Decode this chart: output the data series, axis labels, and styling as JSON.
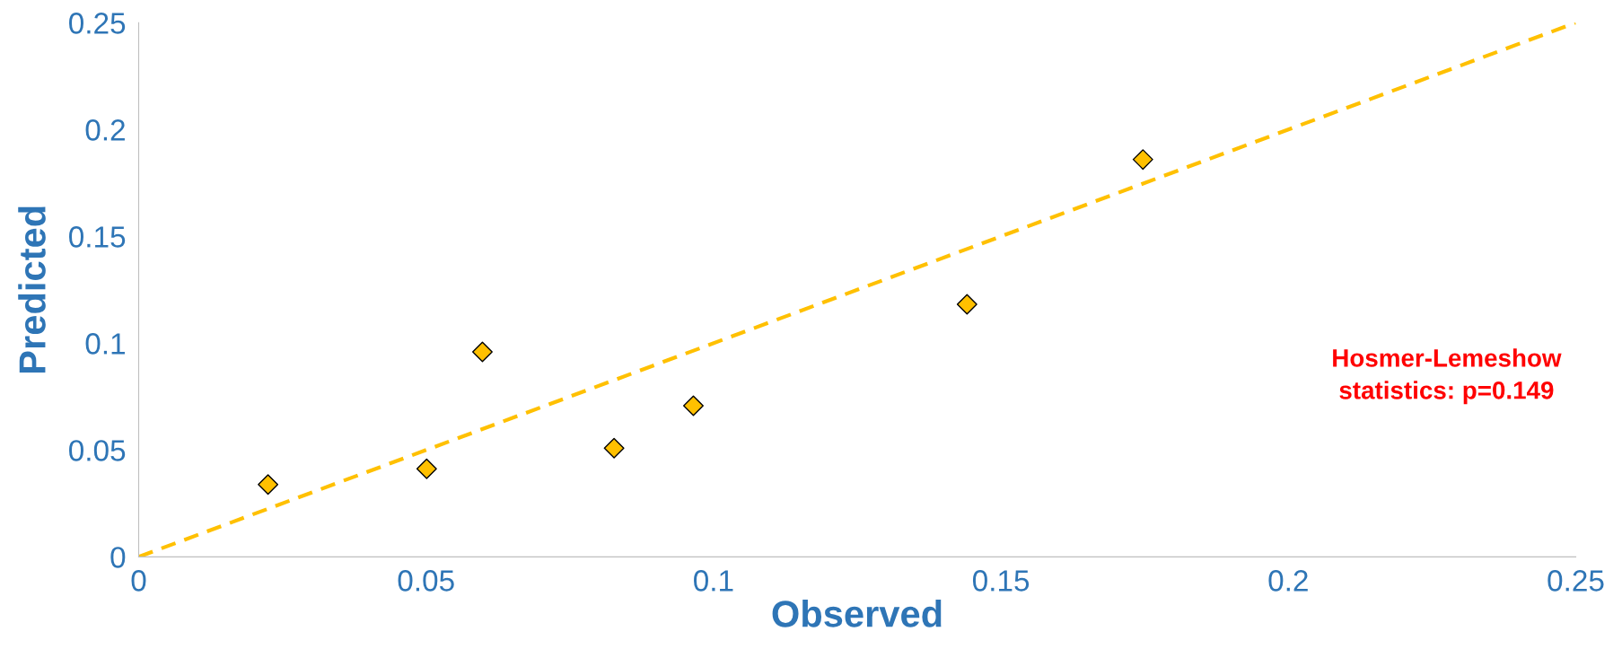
{
  "chart_data": {
    "type": "scatter",
    "xlabel": "Observed",
    "ylabel": "Predicted",
    "xlim": [
      0,
      0.25
    ],
    "ylim": [
      0,
      0.25
    ],
    "xticks": [
      0,
      0.05,
      0.1,
      0.15,
      0.2,
      0.25
    ],
    "yticks": [
      0,
      0.05,
      0.1,
      0.15,
      0.2,
      0.25
    ],
    "grid": false,
    "legend": false,
    "marker": "diamond",
    "series": [
      {
        "color": "#ffc000",
        "x": [
          0.0225,
          0.0501,
          0.0598,
          0.0827,
          0.0965,
          0.1441,
          0.1747
        ],
        "values": [
          0.0339,
          0.0412,
          0.0959,
          0.0509,
          0.0707,
          0.1182,
          0.186
        ]
      },
      {
        "type": "line",
        "color": "#ffc000",
        "line_style": "dashed",
        "marker": "none",
        "x": [
          0,
          0.25
        ],
        "values": [
          0,
          0.25
        ]
      }
    ],
    "annotations": [
      "Hosmer-Lemeshow\nstatistics: p=0.149"
    ]
  }
}
